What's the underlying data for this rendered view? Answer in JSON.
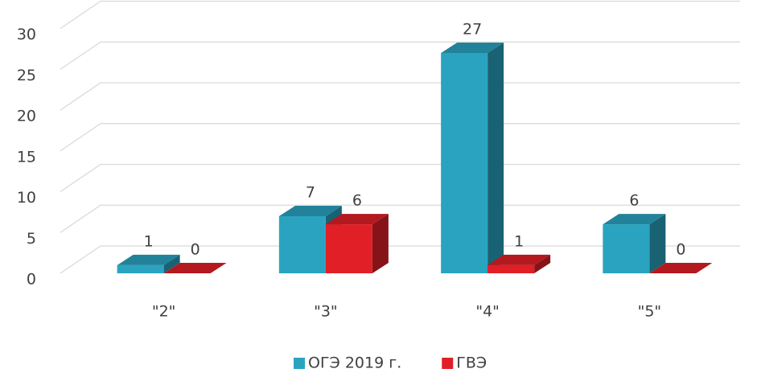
{
  "chart_data": {
    "type": "bar3d",
    "categories": [
      "\"2\"",
      "\"3\"",
      "\"4\"",
      "\"5\""
    ],
    "series": [
      {
        "name": "ОГЭ 2019 г.",
        "color": "#2aa3c0",
        "values": [
          1,
          7,
          27,
          6
        ]
      },
      {
        "name": "ГВЭ",
        "color": "#e01f26",
        "values": [
          0,
          6,
          1,
          0
        ]
      }
    ],
    "ylim": [
      0,
      30
    ],
    "yticks": [
      0,
      5,
      10,
      15,
      20,
      25,
      30
    ],
    "grid": true,
    "legend": "bottom"
  }
}
